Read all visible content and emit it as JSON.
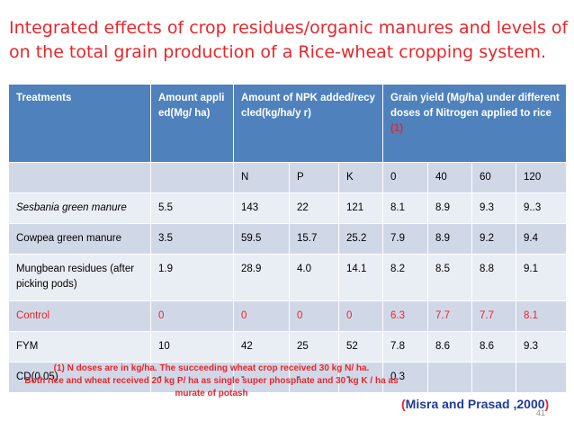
{
  "title": {
    "line1": "Integrated effects of  crop residues/organic manures and levels of N",
    "line2": "on the total grain production of a Rice-wheat cropping system."
  },
  "table": {
    "headers": {
      "treatments": "Treatments",
      "amount": "Amount applied(Mg/ ha)",
      "npk": "Amount of NPK added/recycled(kg/ha/y r)",
      "grain": "Grain yield (Mg/ha) under different doses of Nitrogen applied to rice",
      "grain_ref": "(1)"
    },
    "subheaders": [
      "",
      "",
      "N",
      "P",
      "K",
      "0",
      "40",
      "60",
      "120"
    ],
    "rows": [
      [
        "Sesbania green manure",
        "5.5",
        "143",
        "22",
        "121",
        "8.1",
        "8.9",
        "9.3",
        "9..3"
      ],
      [
        "Cowpea green manure",
        "3.5",
        "59.5",
        "15.7",
        "25.2",
        "7.9",
        "8.9",
        "9.2",
        "9.4"
      ],
      [
        "Mungbean residues (after picking pods)",
        "1.9",
        "28.9",
        "4.0",
        "14.1",
        "8.2",
        "8.5",
        "8.8",
        "9.1"
      ],
      [
        "Control",
        "0",
        "0",
        "0",
        "0",
        "6.3",
        "7.7",
        "7.7",
        "8.1"
      ],
      [
        "FYM",
        "10",
        "42",
        "25",
        "52",
        "7.8",
        "8.6",
        "8.6",
        "9.3"
      ],
      [
        "CD(0.05)",
        "-",
        "-",
        "-",
        "-",
        "0.3",
        "",
        "",
        ""
      ]
    ]
  },
  "footnote": {
    "line1": "(1) N doses are in kg/ha. The succeeding wheat crop received 30 kg N/ ha.",
    "line2": "Both rice and wheat received 20 kg P/ ha as single super phosphate and 30 kg K / ha  as",
    "line3": "murate of potash"
  },
  "citation": {
    "open": "(",
    "text": "Misra and Prasad  ,2000",
    "close": ")"
  },
  "page_number": "41",
  "colors": {
    "header_bg": "#4f81bd",
    "row_odd": "#d0d8e8",
    "row_even": "#e9edf4",
    "red": "#e8262a",
    "navy": "#1f3c99"
  }
}
